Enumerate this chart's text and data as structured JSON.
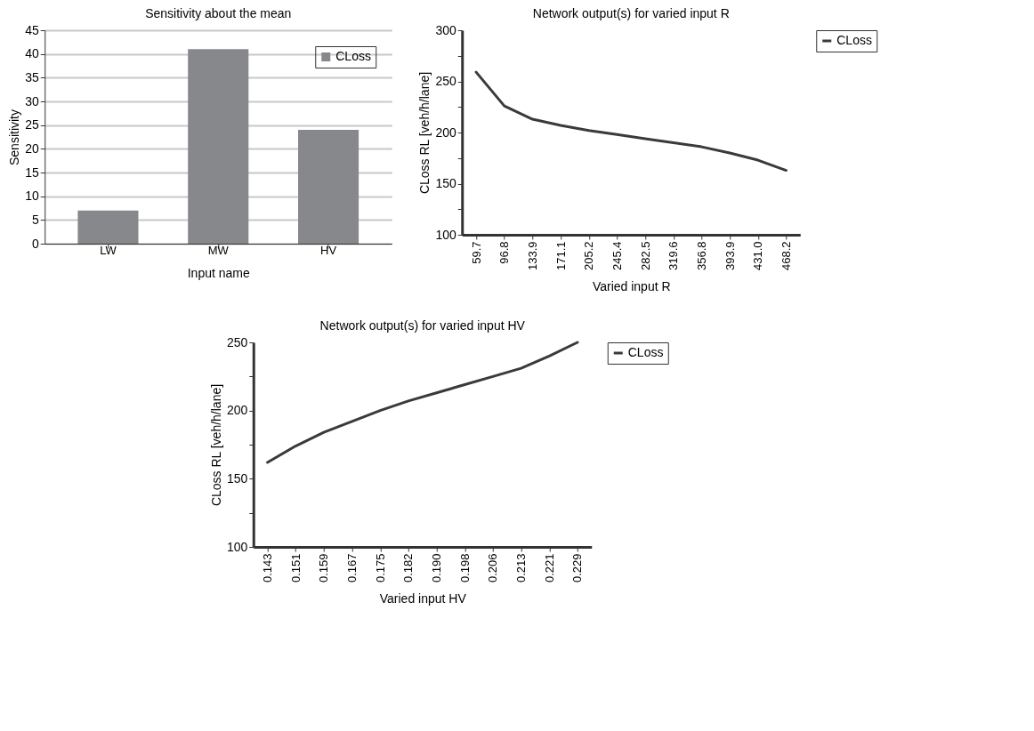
{
  "chart_data": [
    {
      "type": "bar",
      "title": "Sensitivity about the mean",
      "xlabel": "Input name",
      "ylabel": "Sensitivity",
      "categories": [
        "LW",
        "MW",
        "HV"
      ],
      "series": [
        {
          "name": "CLoss",
          "color": "#87888c",
          "values": [
            7,
            41,
            24
          ]
        }
      ],
      "ylim": [
        0,
        45
      ],
      "yticks": [
        0,
        5,
        10,
        15,
        20,
        25,
        30,
        35,
        40,
        45
      ],
      "grid": "y",
      "legend": "top right"
    },
    {
      "type": "line",
      "title": "Network output(s) for varied input R",
      "xlabel": "Varied input R",
      "ylabel": "CLoss RL [veh/h/lane]",
      "categories": [
        "59.7",
        "96.8",
        "133.9",
        "171.1",
        "205.2",
        "245.4",
        "282.5",
        "319.6",
        "356.8",
        "393.9",
        "431.0",
        "468.2"
      ],
      "series": [
        {
          "name": "CLoss",
          "color": "#3a3a3a",
          "values": [
            259,
            226,
            213,
            207,
            202,
            198,
            194,
            190,
            186,
            180,
            173,
            163
          ]
        }
      ],
      "ylim": [
        100,
        300
      ],
      "yticks": [
        100,
        {
          "value": 125,
          "label": null
        },
        150,
        {
          "value": 175,
          "label": null
        },
        200,
        {
          "value": 225,
          "label": null
        },
        250,
        {
          "value": 275,
          "label": null
        },
        300
      ],
      "grid": false,
      "legend": "right",
      "marker": "none",
      "line_style": "solid"
    },
    {
      "type": "line",
      "title": "Network output(s) for varied input HV",
      "xlabel": "Varied input HV",
      "ylabel": "CLoss RL [veh/h/lane]",
      "categories": [
        "0.143",
        "0.151",
        "0.159",
        "0.167",
        "0.175",
        "0.182",
        "0.190",
        "0.198",
        "0.206",
        "0.213",
        "0.221",
        "0.229"
      ],
      "series": [
        {
          "name": "CLoss",
          "color": "#3a3a3a",
          "values": [
            162,
            174,
            184,
            192,
            200,
            207,
            213,
            219,
            225,
            231,
            240,
            250
          ]
        }
      ],
      "ylim": [
        100,
        250
      ],
      "yticks": [
        100,
        {
          "value": 125,
          "label": null
        },
        150,
        {
          "value": 175,
          "label": null
        },
        200,
        {
          "value": 225,
          "label": null
        },
        250
      ],
      "grid": false,
      "legend": "right",
      "marker": "none",
      "line_style": "solid"
    }
  ]
}
